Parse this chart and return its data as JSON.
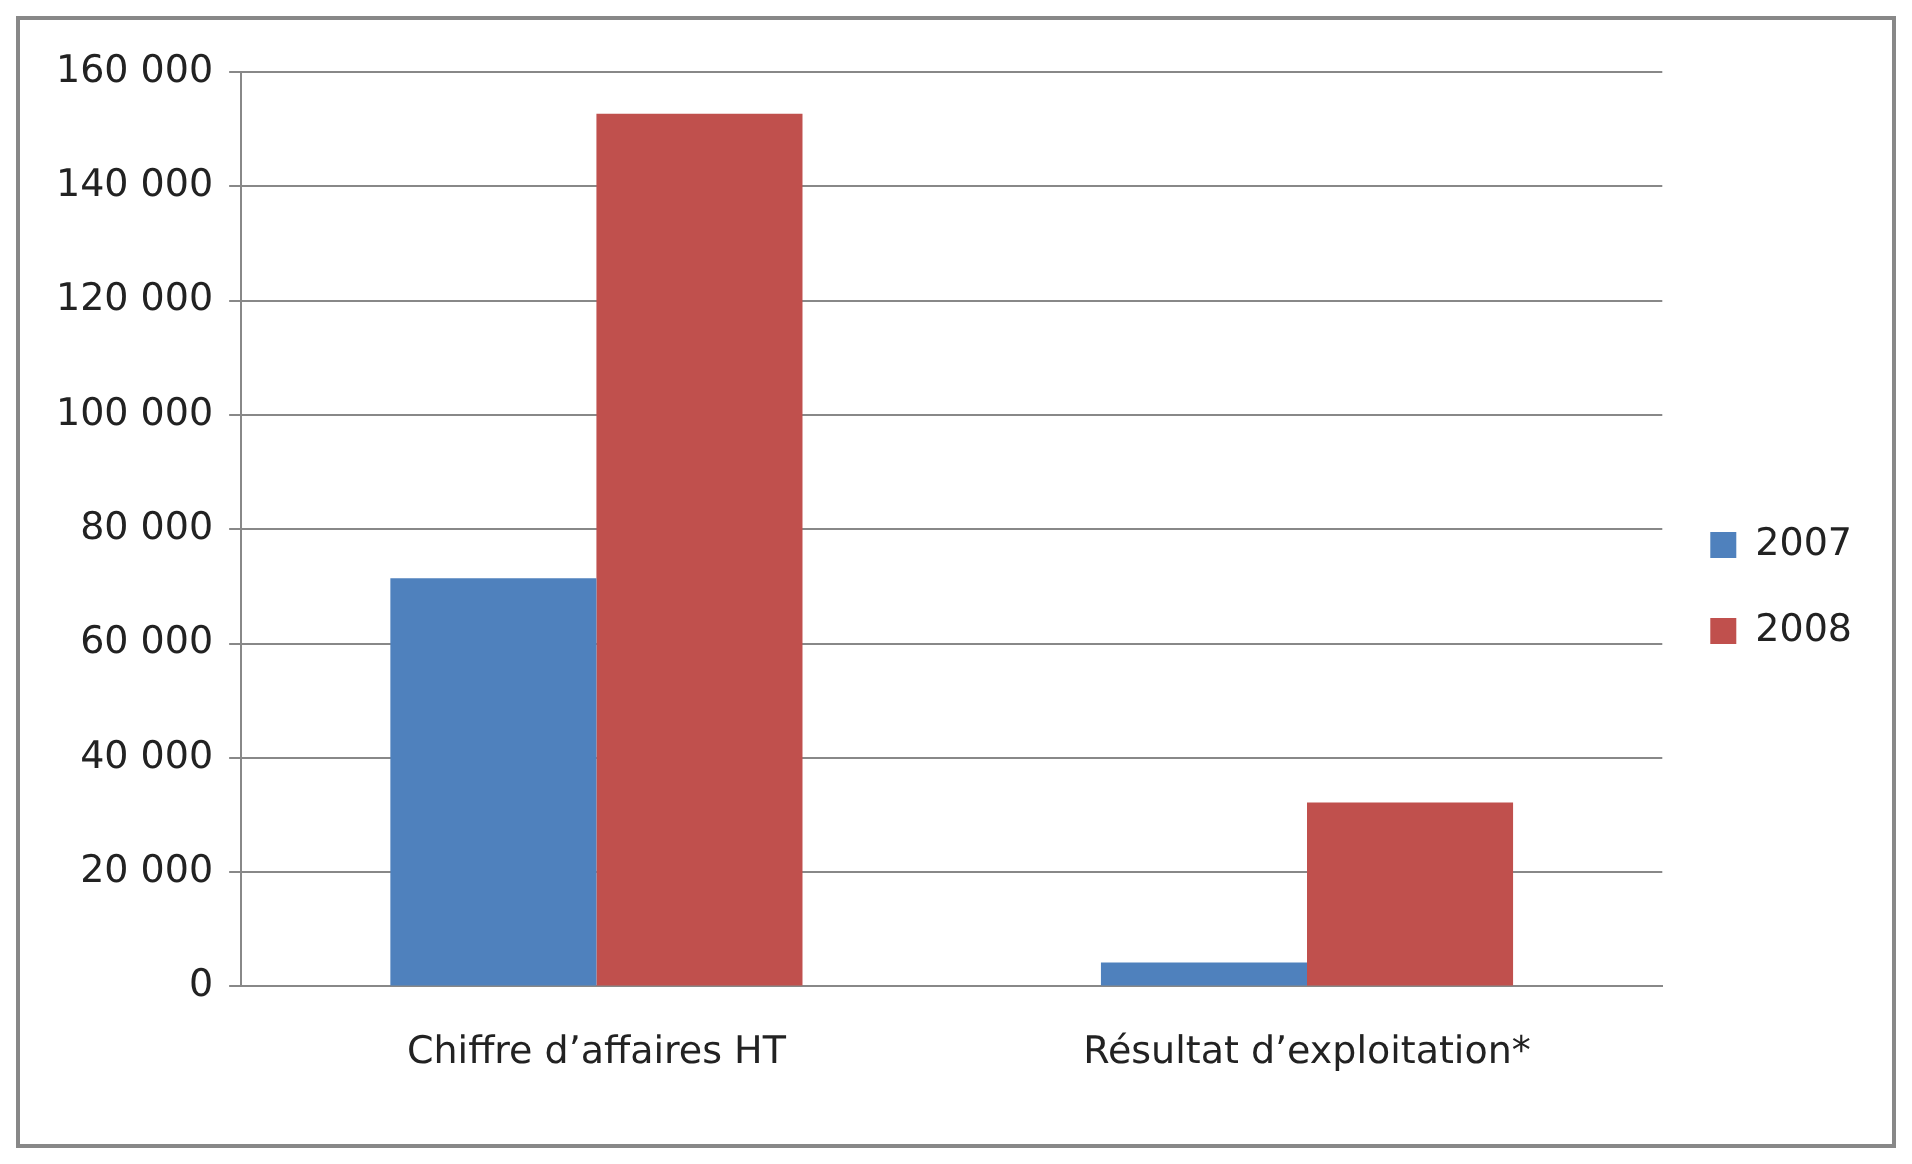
{
  "chart_data": {
    "type": "bar",
    "categories": [
      "Chiffre d’affaires HT",
      "Résultat d’exploitation*"
    ],
    "series": [
      {
        "name": "2007",
        "color": "#4f81bd",
        "values": [
          71400,
          4200
        ]
      },
      {
        "name": "2008",
        "color": "#c0504d",
        "values": [
          152700,
          32200
        ]
      }
    ],
    "ylim": [
      0,
      160000
    ],
    "yticks": [
      {
        "value": 0,
        "label": "0"
      },
      {
        "value": 20000,
        "label": "20 000"
      },
      {
        "value": 40000,
        "label": "40 000"
      },
      {
        "value": 60000,
        "label": "60 000"
      },
      {
        "value": 80000,
        "label": "80 000"
      },
      {
        "value": 100000,
        "label": "100 000"
      },
      {
        "value": 120000,
        "label": "120 000"
      },
      {
        "value": 140000,
        "label": "140 000"
      },
      {
        "value": 160000,
        "label": "160 000"
      }
    ],
    "grid": "y",
    "legend": "right"
  }
}
